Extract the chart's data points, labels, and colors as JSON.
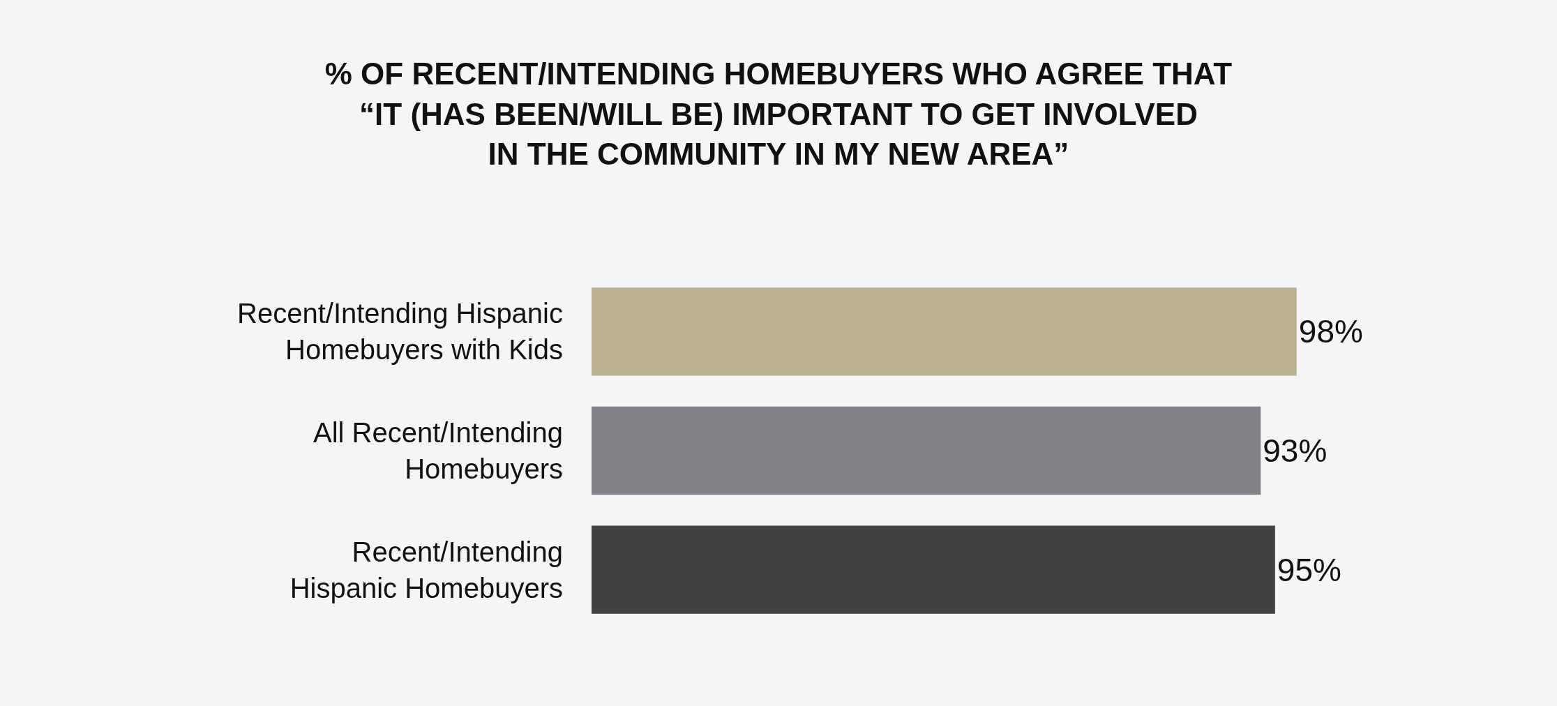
{
  "chart_data": {
    "type": "bar",
    "orientation": "horizontal",
    "title": "% OF RECENT/INTENDING HOMEBUYERS WHO AGREE THAT\n“IT (HAS BEEN/WILL BE) IMPORTANT TO GET INVOLVED\nIN THE COMMUNITY IN MY NEW AREA”",
    "categories": [
      "Recent/Intending Hispanic\nHomebuyers with Kids",
      "All Recent/Intending\nHomebuyers",
      "Recent/Intending\nHispanic Homebuyers"
    ],
    "values": [
      98,
      93,
      95
    ],
    "colors": [
      "#b9b092",
      "#808285",
      "#414141"
    ],
    "value_labels": [
      "98%",
      "93%",
      "95%"
    ],
    "grid": false,
    "legend": false
  }
}
